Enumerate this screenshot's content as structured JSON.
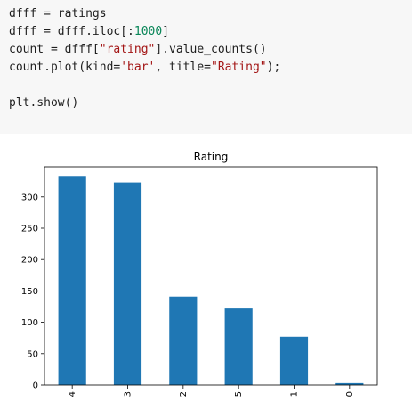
{
  "code": {
    "lines": [
      [
        {
          "t": "dfff = ratings"
        }
      ],
      [
        {
          "t": "dfff = dfff.iloc[:"
        },
        {
          "t": "1000",
          "c": "num"
        },
        {
          "t": "]"
        }
      ],
      [
        {
          "t": "count = dfff["
        },
        {
          "t": "\"rating\"",
          "c": "str"
        },
        {
          "t": "].value_counts()"
        }
      ],
      [
        {
          "t": "count.plot(kind="
        },
        {
          "t": "'bar'",
          "c": "str"
        },
        {
          "t": ", title="
        },
        {
          "t": "\"Rating\"",
          "c": "str"
        },
        {
          "t": ");"
        }
      ],
      [],
      [
        {
          "t": "plt.show()"
        }
      ]
    ]
  },
  "chart_data": {
    "type": "bar",
    "title": "Rating",
    "categories": [
      "4",
      "3",
      "2",
      "5",
      "1",
      "0"
    ],
    "values": [
      332,
      323,
      141,
      122,
      77,
      3
    ],
    "xlabel": "",
    "ylabel": "",
    "ylim": [
      0,
      348
    ],
    "yticks": [
      0,
      50,
      100,
      150,
      200,
      250,
      300
    ],
    "bar_color": "#1f77b4",
    "grid": false
  }
}
